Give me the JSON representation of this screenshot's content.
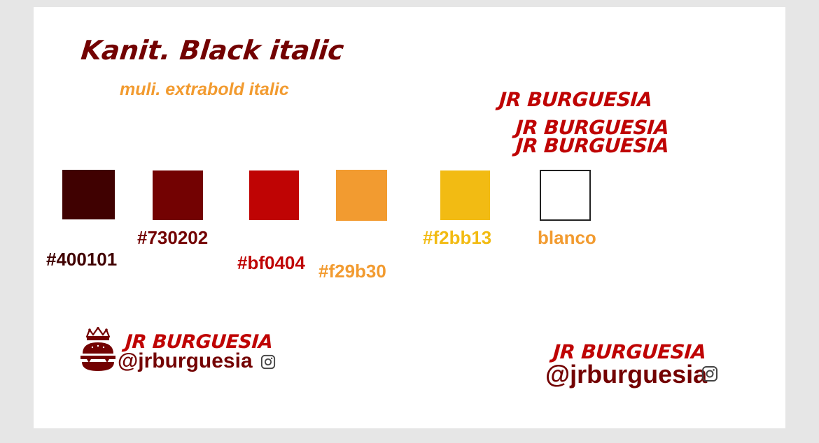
{
  "fonts": {
    "title": "Kanit. Black italic",
    "subtitle": "muli. extrabold italic"
  },
  "wordmarks": [
    "JR BURGUESIA",
    "JR BURGUESIA",
    "JR BURGUESIA"
  ],
  "palette": [
    {
      "label": "#400101",
      "color": "#400101",
      "text_color": "#400101"
    },
    {
      "label": "#730202",
      "color": "#730202",
      "text_color": "#730202"
    },
    {
      "label": "#bf0404",
      "color": "#bf0404",
      "text_color": "#bf0404"
    },
    {
      "label": "#f29b30",
      "color": "#f29b30",
      "text_color": "#f29b30"
    },
    {
      "label": "#f2bb13",
      "color": "#f2bb13",
      "text_color": "#f2bb13"
    },
    {
      "label": "blanco",
      "color": "#ffffff",
      "text_color": "#f29b30"
    }
  ],
  "lockups": {
    "left": {
      "brand": "JR BURGUESIA",
      "handle": "@jrburguesia",
      "icon": "instagram-icon",
      "logo": "burger-crown-logo"
    },
    "right": {
      "brand": "JR BURGUESIA",
      "handle": "@jrburguesia",
      "icon": "instagram-icon"
    }
  }
}
